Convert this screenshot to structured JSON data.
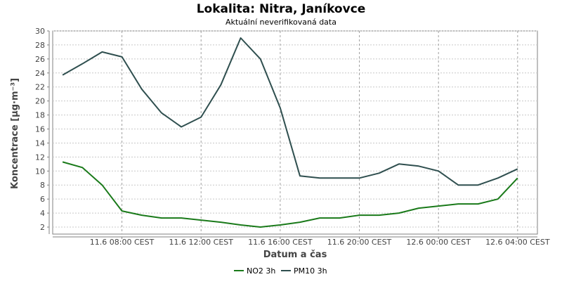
{
  "chart_data": {
    "type": "line",
    "title": "Lokalita: Nitra, Janíkovce",
    "subtitle": "Aktuální neverifikovaná data",
    "xlabel": "Datum a čas",
    "ylabel": "Koncentrace [µg·m⁻³]",
    "ylim": [
      1,
      30
    ],
    "y_ticks": [
      2,
      4,
      6,
      8,
      10,
      12,
      14,
      16,
      18,
      20,
      22,
      24,
      26,
      28,
      30
    ],
    "x_tick_labels": [
      "11.6 08:00 CEST",
      "11.6 12:00 CEST",
      "11.6 16:00 CEST",
      "11.6 20:00 CEST",
      "12.6 00:00 CEST",
      "12.6 04:00 CEST"
    ],
    "x_tick_hours": [
      8,
      12,
      16,
      20,
      24,
      28
    ],
    "x": [
      5,
      6,
      7,
      8,
      9,
      10,
      11,
      12,
      13,
      14,
      15,
      16,
      17,
      18,
      19,
      20,
      21,
      22,
      23,
      24,
      25,
      26,
      27,
      28
    ],
    "xlim": [
      4.5,
      29
    ],
    "grid": true,
    "legend_position": "bottom",
    "series": [
      {
        "name": "NO2 3h",
        "color": "#1a7a1a",
        "values": [
          11.3,
          10.5,
          8.0,
          4.3,
          3.7,
          3.3,
          3.3,
          3.0,
          2.7,
          2.3,
          2.0,
          2.3,
          2.7,
          3.3,
          3.3,
          3.7,
          3.7,
          4.0,
          4.7,
          5.0,
          5.3,
          5.3,
          6.0,
          9.0
        ]
      },
      {
        "name": "PM10 3h",
        "color": "#2f4f4f",
        "values": [
          23.7,
          25.3,
          27.0,
          26.3,
          21.7,
          18.3,
          16.3,
          17.7,
          22.3,
          29.0,
          26.0,
          19.0,
          9.3,
          9.0,
          9.0,
          9.0,
          9.7,
          11.0,
          10.7,
          10.0,
          8.0,
          8.0,
          9.0,
          10.3
        ]
      }
    ]
  }
}
